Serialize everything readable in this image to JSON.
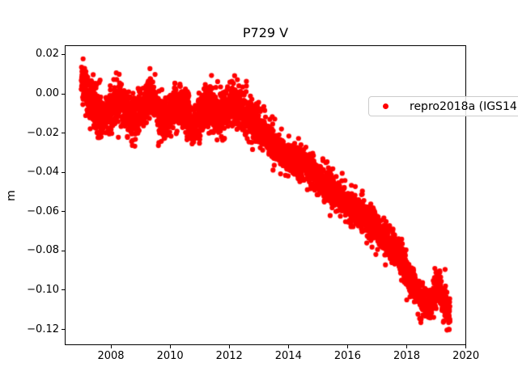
{
  "chart_data": {
    "type": "scatter",
    "title": "P729 V",
    "ylabel": "m",
    "xlabel": "",
    "grid": false,
    "legend": {
      "label": "repro2018a (IGS14)",
      "position": "upper right",
      "marker": "dot-icon",
      "marker_color": "#ff0000"
    },
    "axes": {
      "xlim": [
        2006.44,
        2020.01
      ],
      "ylim": [
        -0.128,
        0.0247
      ],
      "xticks": {
        "values": [
          2008,
          2010,
          2012,
          2014,
          2016,
          2018,
          2020
        ],
        "labels": [
          "2008",
          "2010",
          "2012",
          "2014",
          "2016",
          "2018",
          "2020"
        ]
      },
      "yticks": {
        "values": [
          0.02,
          0.0,
          -0.02,
          -0.04,
          -0.06,
          -0.08,
          -0.1,
          -0.12
        ],
        "labels": [
          "0.02",
          "0.00",
          "−0.02",
          "−0.04",
          "−0.06",
          "−0.08",
          "−0.10",
          "−0.12"
        ]
      }
    },
    "series": [
      {
        "name": "repro2018a (IGS14)",
        "color": "#ff0000",
        "marker": "point",
        "marker_radius_px": 3.1,
        "n_points": 4500,
        "t_start": 2007.0,
        "t_end": 2019.46,
        "seed": 20180729,
        "noise": {
          "sigma_early": 0.0052,
          "sigma_late": 0.004,
          "switch_year": 2013.0,
          "outlier_prob": 0.018,
          "outlier_sigma": 0.0085
        },
        "trend_anchors": [
          [
            2007.0,
            0.007
          ],
          [
            2007.1,
            0.004
          ],
          [
            2007.3,
            -0.004
          ],
          [
            2007.5,
            -0.009
          ],
          [
            2007.7,
            -0.012
          ],
          [
            2007.9,
            -0.01
          ],
          [
            2008.1,
            -0.006
          ],
          [
            2008.3,
            -0.003
          ],
          [
            2008.5,
            -0.007
          ],
          [
            2008.7,
            -0.013
          ],
          [
            2008.95,
            -0.01
          ],
          [
            2009.15,
            -0.005
          ],
          [
            2009.35,
            -0.002
          ],
          [
            2009.55,
            -0.007
          ],
          [
            2009.75,
            -0.013
          ],
          [
            2009.95,
            -0.011
          ],
          [
            2010.15,
            -0.006
          ],
          [
            2010.35,
            -0.004
          ],
          [
            2010.55,
            -0.009
          ],
          [
            2010.75,
            -0.017
          ],
          [
            2010.9,
            -0.015
          ],
          [
            2011.1,
            -0.009
          ],
          [
            2011.3,
            -0.006
          ],
          [
            2011.5,
            -0.009
          ],
          [
            2011.7,
            -0.012
          ],
          [
            2011.9,
            -0.009
          ],
          [
            2012.1,
            -0.005
          ],
          [
            2012.3,
            -0.006
          ],
          [
            2012.5,
            -0.009
          ],
          [
            2012.7,
            -0.012
          ],
          [
            2012.9,
            -0.015
          ],
          [
            2013.1,
            -0.018
          ],
          [
            2013.3,
            -0.021
          ],
          [
            2013.5,
            -0.026
          ],
          [
            2013.7,
            -0.029
          ],
          [
            2013.9,
            -0.032
          ],
          [
            2014.1,
            -0.033
          ],
          [
            2014.3,
            -0.034
          ],
          [
            2014.5,
            -0.036
          ],
          [
            2014.7,
            -0.038
          ],
          [
            2014.9,
            -0.041
          ],
          [
            2015.1,
            -0.044
          ],
          [
            2015.3,
            -0.047
          ],
          [
            2015.5,
            -0.05
          ],
          [
            2015.7,
            -0.052
          ],
          [
            2015.9,
            -0.055
          ],
          [
            2016.1,
            -0.058
          ],
          [
            2016.3,
            -0.06
          ],
          [
            2016.5,
            -0.061
          ],
          [
            2016.7,
            -0.064
          ],
          [
            2016.9,
            -0.067
          ],
          [
            2017.1,
            -0.071
          ],
          [
            2017.3,
            -0.074
          ],
          [
            2017.5,
            -0.078
          ],
          [
            2017.7,
            -0.081
          ],
          [
            2017.9,
            -0.087
          ],
          [
            2018.1,
            -0.093
          ],
          [
            2018.3,
            -0.099
          ],
          [
            2018.5,
            -0.105
          ],
          [
            2018.65,
            -0.109
          ],
          [
            2018.8,
            -0.107
          ],
          [
            2019.0,
            -0.1
          ],
          [
            2019.1,
            -0.099
          ],
          [
            2019.25,
            -0.106
          ],
          [
            2019.4,
            -0.111
          ],
          [
            2019.46,
            -0.11
          ]
        ],
        "extra_points": [
          [
            2019.36,
            -0.1203
          ],
          [
            2007.06,
            0.0178
          ],
          [
            2009.32,
            0.0128
          ],
          [
            2012.58,
            0.0063
          ],
          [
            2013.2,
            -0.0085
          ],
          [
            2016.13,
            -0.0466
          ],
          [
            2016.5,
            -0.0495
          ]
        ]
      }
    ]
  }
}
